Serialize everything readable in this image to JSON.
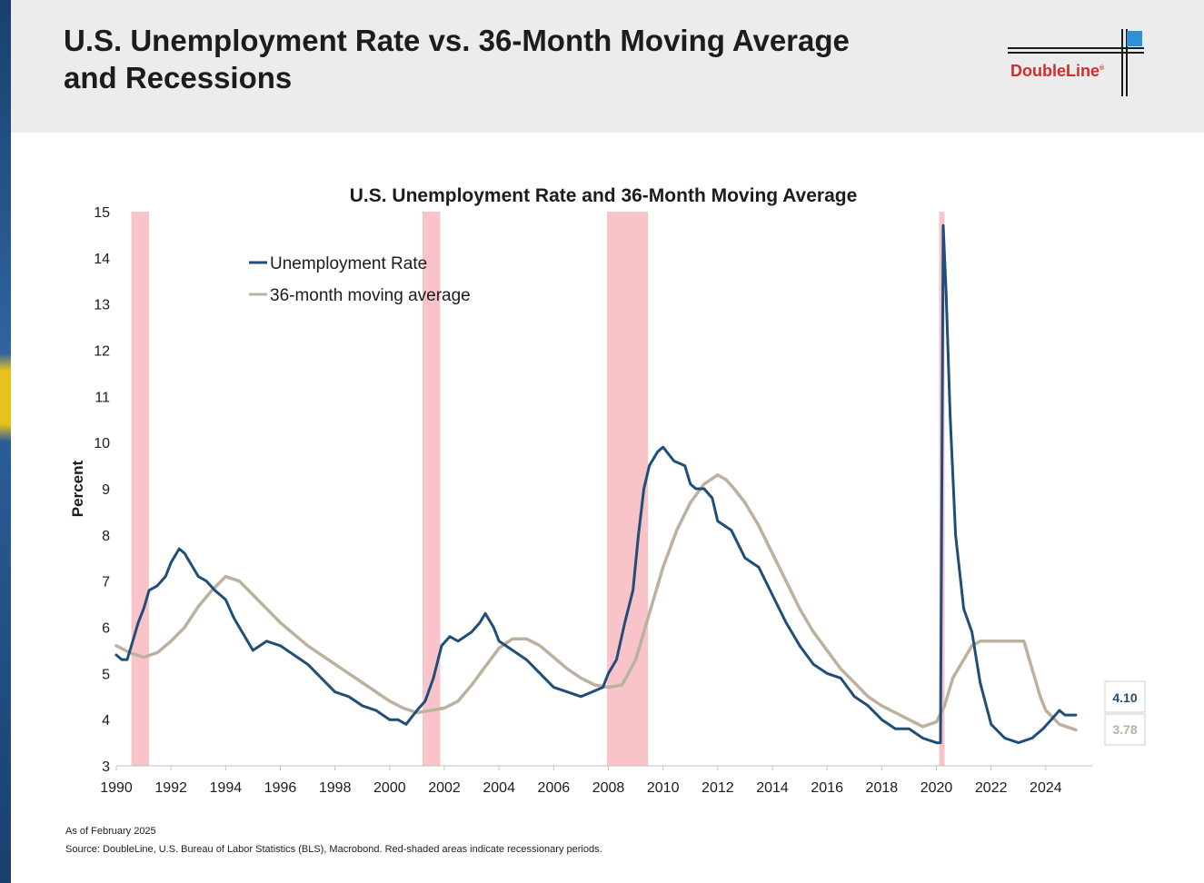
{
  "header": {
    "title_line1": "U.S. Unemployment Rate vs. 36-Month Moving Average",
    "title_line2": "and Recessions",
    "logo_text": "DoubleLine",
    "logo_mark": "®"
  },
  "footnotes": {
    "as_of": "As of February 2025",
    "source": "Source: DoubleLine, U.S. Bureau of Labor Statistics (BLS), Macrobond. Red-shaded areas indicate recessionary periods."
  },
  "colors": {
    "unemployment": "#1f4e79",
    "moving_average": "#bcb19e",
    "recession": "#f9c4c9"
  },
  "chart_data": {
    "type": "line",
    "title": "U.S. Unemployment Rate and 36-Month Moving Average",
    "ylabel": "Percent",
    "xlabel": "",
    "xlim": [
      1990,
      2025.7
    ],
    "ylim": [
      3,
      15
    ],
    "x_ticks": [
      1990,
      1992,
      1994,
      1996,
      1998,
      2000,
      2002,
      2004,
      2006,
      2008,
      2010,
      2012,
      2014,
      2016,
      2018,
      2020,
      2022,
      2024
    ],
    "y_ticks": [
      3,
      4,
      5,
      6,
      7,
      8,
      9,
      10,
      11,
      12,
      13,
      14,
      15
    ],
    "legend_position": "top-left",
    "recessions": [
      [
        1990.55,
        1991.2
      ],
      [
        2001.2,
        2001.85
      ],
      [
        2007.95,
        2009.45
      ],
      [
        2020.1,
        2020.3
      ]
    ],
    "series": [
      {
        "name": "Unemployment Rate",
        "last_value_label": "4.10",
        "x": [
          1990,
          1990.2,
          1990.4,
          1990.6,
          1990.8,
          1991,
          1991.2,
          1991.5,
          1991.8,
          1992,
          1992.3,
          1992.5,
          1992.8,
          1993,
          1993.3,
          1993.6,
          1994,
          1994.3,
          1994.6,
          1995,
          1995.5,
          1996,
          1996.5,
          1997,
          1997.5,
          1998,
          1998.5,
          1999,
          1999.5,
          2000,
          2000.3,
          2000.6,
          2001,
          2001.3,
          2001.6,
          2001.9,
          2002.2,
          2002.5,
          2003,
          2003.3,
          2003.5,
          2003.8,
          2004,
          2004.5,
          2005,
          2005.5,
          2006,
          2006.5,
          2007,
          2007.4,
          2007.8,
          2008,
          2008.3,
          2008.6,
          2008.9,
          2009.1,
          2009.3,
          2009.5,
          2009.8,
          2010,
          2010.4,
          2010.8,
          2011,
          2011.2,
          2011.5,
          2011.8,
          2012,
          2012.5,
          2013,
          2013.5,
          2014,
          2014.5,
          2015,
          2015.5,
          2016,
          2016.5,
          2017,
          2017.5,
          2018,
          2018.5,
          2019,
          2019.5,
          2020,
          2020.15,
          2020.25,
          2020.35,
          2020.5,
          2020.7,
          2021,
          2021.3,
          2021.6,
          2022,
          2022.5,
          2023,
          2023.5,
          2023.9,
          2024.2,
          2024.5,
          2024.7,
          2025.1
        ],
        "y": [
          5.4,
          5.3,
          5.3,
          5.7,
          6.1,
          6.4,
          6.8,
          6.9,
          7.1,
          7.4,
          7.7,
          7.6,
          7.3,
          7.1,
          7.0,
          6.8,
          6.6,
          6.2,
          5.9,
          5.5,
          5.7,
          5.6,
          5.4,
          5.2,
          4.9,
          4.6,
          4.5,
          4.3,
          4.2,
          4.0,
          4.0,
          3.9,
          4.2,
          4.4,
          4.9,
          5.6,
          5.8,
          5.7,
          5.9,
          6.1,
          6.3,
          6.0,
          5.7,
          5.5,
          5.3,
          5.0,
          4.7,
          4.6,
          4.5,
          4.6,
          4.7,
          5.0,
          5.3,
          6.1,
          6.8,
          8.0,
          9.0,
          9.5,
          9.8,
          9.9,
          9.6,
          9.5,
          9.1,
          9.0,
          9.0,
          8.8,
          8.3,
          8.1,
          7.5,
          7.3,
          6.7,
          6.1,
          5.6,
          5.2,
          5.0,
          4.9,
          4.5,
          4.3,
          4.0,
          3.8,
          3.8,
          3.6,
          3.5,
          3.5,
          14.7,
          13.3,
          10.6,
          8.0,
          6.4,
          5.9,
          4.8,
          3.9,
          3.6,
          3.5,
          3.6,
          3.8,
          4.0,
          4.2,
          4.1,
          4.1
        ]
      },
      {
        "name": "36-month moving average",
        "last_value_label": "3.78",
        "x": [
          1990,
          1990.5,
          1991,
          1991.5,
          1992,
          1992.5,
          1993,
          1993.5,
          1994,
          1994.5,
          1995,
          1995.5,
          1996,
          1996.5,
          1997,
          1998,
          1999,
          2000,
          2000.5,
          2001,
          2001.5,
          2002,
          2002.5,
          2003,
          2003.5,
          2004,
          2004.5,
          2005,
          2005.5,
          2006,
          2006.5,
          2007,
          2007.5,
          2008,
          2008.5,
          2009,
          2009.5,
          2010,
          2010.5,
          2011,
          2011.5,
          2012,
          2012.3,
          2012.6,
          2013,
          2013.5,
          2014,
          2014.5,
          2015,
          2015.5,
          2016,
          2016.5,
          2017,
          2017.5,
          2018,
          2018.5,
          2019,
          2019.5,
          2020,
          2020.3,
          2020.6,
          2021,
          2021.3,
          2021.6,
          2022,
          2022.5,
          2023,
          2023.2,
          2023.5,
          2023.8,
          2024,
          2024.5,
          2025.1
        ],
        "y": [
          5.6,
          5.45,
          5.35,
          5.45,
          5.7,
          6.0,
          6.45,
          6.8,
          7.1,
          7.0,
          6.7,
          6.4,
          6.1,
          5.85,
          5.6,
          5.2,
          4.8,
          4.4,
          4.25,
          4.15,
          4.2,
          4.25,
          4.4,
          4.75,
          5.15,
          5.55,
          5.75,
          5.75,
          5.6,
          5.35,
          5.1,
          4.9,
          4.75,
          4.7,
          4.75,
          5.3,
          6.3,
          7.3,
          8.1,
          8.7,
          9.1,
          9.3,
          9.2,
          9.0,
          8.7,
          8.2,
          7.6,
          7.0,
          6.4,
          5.9,
          5.5,
          5.1,
          4.8,
          4.5,
          4.3,
          4.15,
          4.0,
          3.85,
          3.95,
          4.3,
          4.9,
          5.3,
          5.6,
          5.7,
          5.7,
          5.7,
          5.7,
          5.7,
          5.1,
          4.5,
          4.2,
          3.9,
          3.78
        ]
      }
    ]
  }
}
